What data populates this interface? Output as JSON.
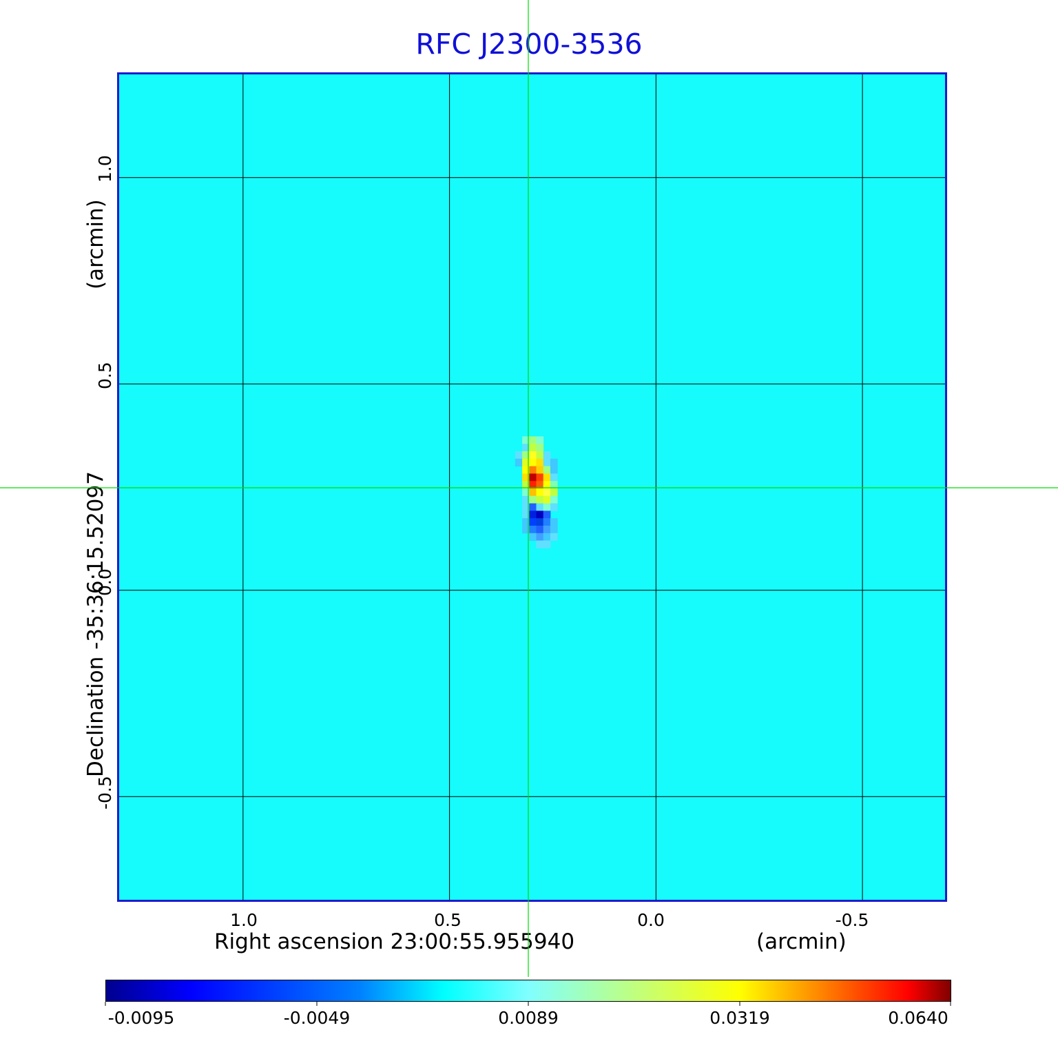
{
  "title": "RFC J2300-3536",
  "x_axis": {
    "label": "Right ascension  23:00:55.955940",
    "unit": "(arcmin)",
    "ticks": [
      {
        "value": 1.0,
        "label": "1.0"
      },
      {
        "value": 0.5,
        "label": "0.5"
      },
      {
        "value": 0.0,
        "label": "0.0"
      },
      {
        "value": -0.5,
        "label": "-0.5"
      }
    ],
    "range": [
      1.3,
      -0.7
    ]
  },
  "y_axis": {
    "label": "Declination  -35:36:15.52097",
    "unit": "(arcmin)",
    "ticks": [
      {
        "value": 1.0,
        "label": "1.0"
      },
      {
        "value": 0.5,
        "label": "0.5"
      },
      {
        "value": 0.0,
        "label": "0.0"
      },
      {
        "value": -0.5,
        "label": "-0.5"
      }
    ],
    "range": [
      -0.75,
      1.25
    ]
  },
  "colorbar": {
    "ticks": [
      {
        "value": -0.0095,
        "label": "-0.0095"
      },
      {
        "value": -0.0049,
        "label": "-0.0049"
      },
      {
        "value": 0.0089,
        "label": "0.0089"
      },
      {
        "value": 0.0319,
        "label": "0.0319"
      },
      {
        "value": 0.064,
        "label": "0.0640"
      }
    ],
    "colormap": "jet"
  },
  "crosshair": {
    "ra": 0.29,
    "dec": 0.24,
    "color": "#00dd00"
  },
  "colors": {
    "title": "#1010d8",
    "frame": "#1a1acc",
    "background": "#16fbfb",
    "grid": "#000000"
  }
}
